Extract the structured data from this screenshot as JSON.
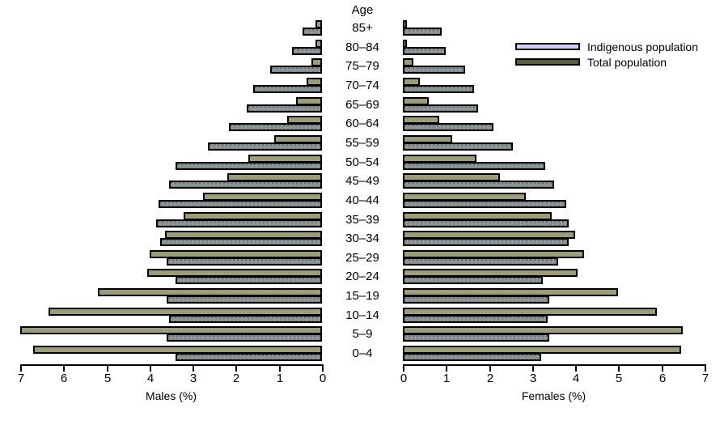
{
  "figure": {
    "age_header": "Age",
    "left_axis_title": "Males (%)",
    "right_axis_title": "Females (%)"
  },
  "legend": {
    "items": [
      {
        "label": "Indigenous population",
        "color": "#CCCCFF",
        "role": "indigenous"
      },
      {
        "label": "Total population",
        "color": "#5C5C3B",
        "role": "total"
      }
    ]
  },
  "colors": {
    "indigenous_bar": "#9C9C78",
    "total_bar": "#8C9494",
    "bar_border": "#000000"
  },
  "chart_data": {
    "type": "bar",
    "subtype": "population-pyramid",
    "orientation": "horizontal",
    "grid": false,
    "legend_position": "top-right",
    "categories_top_to_bottom": [
      "85+",
      "80–84",
      "75–79",
      "70–74",
      "65–69",
      "60–64",
      "55–59",
      "50–54",
      "45–49",
      "40–44",
      "35–39",
      "30–34",
      "25–29",
      "20–24",
      "15–19",
      "10–14",
      "5–9",
      "0–4"
    ],
    "series": [
      {
        "name": "Indigenous population",
        "side": "males",
        "role": "indigenous",
        "values": [
          0.15,
          0.15,
          0.25,
          0.35,
          0.6,
          0.8,
          1.1,
          1.7,
          2.2,
          2.75,
          3.2,
          3.65,
          4.0,
          4.05,
          5.2,
          6.35,
          7.0,
          6.7
        ]
      },
      {
        "name": "Total population",
        "side": "males",
        "role": "total",
        "values": [
          0.45,
          0.7,
          1.2,
          1.6,
          1.75,
          2.15,
          2.65,
          3.4,
          3.55,
          3.8,
          3.85,
          3.75,
          3.6,
          3.4,
          3.6,
          3.55,
          3.6,
          3.4
        ]
      },
      {
        "name": "Indigenous population",
        "side": "females",
        "role": "indigenous",
        "values": [
          0.1,
          0.1,
          0.25,
          0.4,
          0.6,
          0.85,
          1.15,
          1.7,
          2.25,
          2.85,
          3.45,
          4.0,
          4.2,
          4.05,
          5.0,
          5.9,
          6.5,
          6.45
        ]
      },
      {
        "name": "Total population",
        "side": "females",
        "role": "total",
        "values": [
          0.9,
          1.0,
          1.45,
          1.65,
          1.75,
          2.1,
          2.55,
          3.3,
          3.5,
          3.8,
          3.85,
          3.85,
          3.6,
          3.25,
          3.4,
          3.35,
          3.4,
          3.2
        ]
      }
    ],
    "axis_ticks_left": [
      7,
      6,
      5,
      4,
      3,
      2,
      1,
      0
    ],
    "axis_ticks_right": [
      0,
      1,
      2,
      3,
      4,
      5,
      6,
      7
    ],
    "xlabel_left": "Males (%)",
    "xlabel_right": "Females (%)",
    "xlim": [
      0,
      7
    ]
  }
}
